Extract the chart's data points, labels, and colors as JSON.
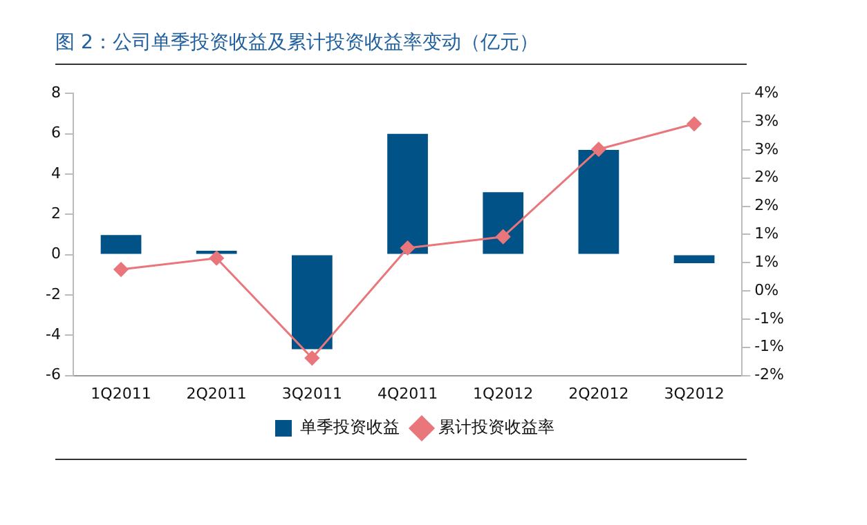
{
  "chart_data": {
    "type": "bar",
    "title": "图 2：公司单季投资收益及累计投资收益率变动（亿元）",
    "categories": [
      "1Q2011",
      "2Q2011",
      "3Q2011",
      "4Q2011",
      "1Q2012",
      "2Q2012",
      "3Q2012"
    ],
    "series": [
      {
        "name": "单季投资收益",
        "color": "#005287",
        "values": [
          0.97,
          0.19,
          -4.69,
          5.99,
          3.1,
          5.2,
          -0.43
        ]
      },
      {
        "name": "累计投资收益率",
        "type": "line",
        "axis": "y2",
        "color": "#e8767a",
        "marker": "diamond",
        "values": [
          0.38,
          0.58,
          -1.19,
          0.76,
          0.96,
          2.51,
          2.96
        ]
      }
    ],
    "ylim": [
      -6,
      8
    ],
    "yticks": [
      -6,
      -4,
      -2,
      0,
      2,
      4,
      6,
      8
    ],
    "y2lim": [
      -1.5,
      3.5
    ],
    "y2ticks": [
      {
        "value": 3.5,
        "label": "4%"
      },
      {
        "value": 3,
        "label": "3%"
      },
      {
        "value": 2.5,
        "label": "3%"
      },
      {
        "value": 2,
        "label": "2%"
      },
      {
        "value": 1.5,
        "label": "2%"
      },
      {
        "value": 1,
        "label": "1%"
      },
      {
        "value": 0.5,
        "label": "1%"
      },
      {
        "value": 0,
        "label": "0%"
      },
      {
        "value": -0.5,
        "label": "-1%"
      },
      {
        "value": -1,
        "label": "-1%"
      },
      {
        "value": -1.5,
        "label": "-2%"
      }
    ],
    "grid": false,
    "legend": "bottom"
  }
}
